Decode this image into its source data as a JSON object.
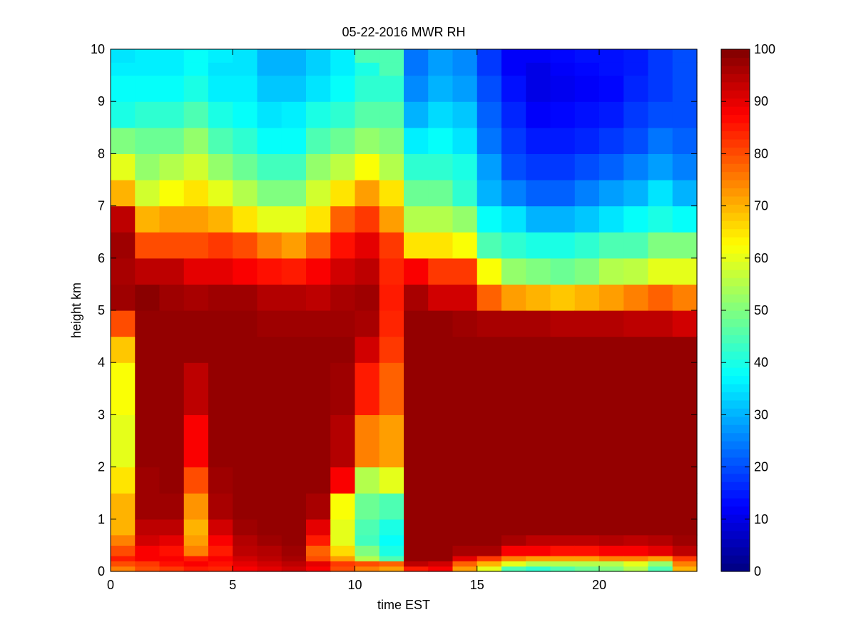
{
  "chart_data": {
    "type": "heatmap",
    "title": "05-22-2016 MWR RH",
    "xlabel": "time EST",
    "ylabel": "height km",
    "xlim": [
      0,
      24
    ],
    "ylim": [
      0,
      10
    ],
    "x_ticks": [
      0,
      5,
      10,
      15,
      20
    ],
    "y_ticks": [
      0,
      1,
      2,
      3,
      4,
      5,
      6,
      7,
      8,
      9,
      10
    ],
    "colorbar": {
      "colormap": "jet",
      "range": [
        0,
        100
      ],
      "ticks": [
        0,
        10,
        20,
        30,
        40,
        50,
        60,
        70,
        80,
        90,
        100
      ]
    },
    "grid": false,
    "time_columns": [
      0.5,
      1.5,
      2.5,
      3.5,
      4.5,
      5.5,
      6.5,
      7.5,
      8.5,
      9.5,
      10.5,
      11.5,
      12.5,
      13.5,
      14.5,
      15.5,
      16.5,
      17.5,
      18.5,
      19.5,
      20.5,
      21.5,
      22.5,
      23.5
    ],
    "height_levels_km": [
      0.0,
      0.1,
      0.2,
      0.3,
      0.5,
      0.7,
      1.0,
      1.5,
      2.0,
      3.0,
      4.0,
      4.5,
      5.0,
      5.5,
      6.0,
      6.5,
      7.0,
      7.5,
      8.0,
      8.5,
      9.0,
      9.5,
      9.75
    ],
    "rh_percent": [
      [
        75,
        80,
        85,
        80,
        75,
        70,
        70,
        65,
        60,
        62,
        68,
        80,
        97,
        96,
        97,
        94,
        70,
        60,
        50,
        40,
        38,
        36,
        35
      ],
      [
        80,
        82,
        88,
        88,
        92,
        94,
        97,
        97,
        98,
        98,
        98,
        98,
        99,
        94,
        80,
        70,
        58,
        52,
        48,
        42,
        38,
        36,
        36
      ],
      [
        82,
        86,
        88,
        86,
        90,
        94,
        97,
        98,
        98,
        98,
        98,
        98,
        97,
        94,
        80,
        72,
        62,
        55,
        48,
        42,
        38,
        36,
        36
      ],
      [
        85,
        88,
        85,
        75,
        72,
        70,
        73,
        80,
        88,
        94,
        98,
        98,
        96,
        90,
        80,
        72,
        65,
        58,
        52,
        45,
        40,
        38,
        38
      ],
      [
        84,
        86,
        88,
        85,
        88,
        92,
        96,
        97,
        98,
        98,
        98,
        98,
        97,
        90,
        82,
        70,
        60,
        52,
        45,
        40,
        36,
        35,
        36
      ],
      [
        88,
        90,
        92,
        94,
        95,
        97,
        98,
        98,
        98,
        98,
        98,
        98,
        97,
        88,
        80,
        65,
        55,
        48,
        42,
        38,
        36,
        35,
        35
      ],
      [
        90,
        92,
        94,
        95,
        97,
        98,
        98,
        98,
        98,
        98,
        98,
        97,
        95,
        86,
        75,
        60,
        50,
        44,
        38,
        35,
        32,
        30,
        30
      ],
      [
        92,
        94,
        96,
        97,
        98,
        98,
        98,
        98,
        98,
        98,
        98,
        97,
        95,
        85,
        72,
        60,
        50,
        44,
        38,
        36,
        32,
        30,
        30
      ],
      [
        88,
        90,
        80,
        78,
        85,
        90,
        96,
        98,
        98,
        98,
        98,
        97,
        94,
        88,
        78,
        65,
        58,
        52,
        45,
        40,
        35,
        33,
        33
      ],
      [
        80,
        82,
        72,
        66,
        60,
        60,
        62,
        88,
        95,
        97,
        98,
        97,
        96,
        92,
        86,
        78,
        65,
        56,
        48,
        42,
        38,
        36,
        36
      ],
      [
        75,
        80,
        55,
        50,
        44,
        45,
        48,
        55,
        75,
        85,
        92,
        96,
        97,
        94,
        90,
        82,
        72,
        62,
        52,
        46,
        42,
        40,
        45
      ],
      [
        72,
        78,
        45,
        40,
        38,
        40,
        45,
        60,
        72,
        78,
        82,
        84,
        85,
        84,
        82,
        72,
        65,
        55,
        50,
        46,
        42,
        45,
        45
      ],
      [
        85,
        94,
        98,
        98,
        98,
        98,
        98,
        98,
        98,
        98,
        98,
        98,
        96,
        88,
        65,
        55,
        48,
        42,
        36,
        30,
        26,
        24,
        24
      ],
      [
        88,
        92,
        98,
        98,
        98,
        98,
        98,
        98,
        98,
        98,
        98,
        98,
        92,
        82,
        65,
        55,
        48,
        42,
        38,
        34,
        30,
        28,
        28
      ],
      [
        72,
        78,
        90,
        96,
        98,
        98,
        98,
        98,
        98,
        98,
        98,
        97,
        92,
        82,
        62,
        52,
        42,
        40,
        35,
        32,
        28,
        26,
        26
      ],
      [
        60,
        70,
        82,
        96,
        98,
        98,
        98,
        98,
        98,
        98,
        98,
        96,
        78,
        62,
        45,
        38,
        30,
        28,
        24,
        22,
        20,
        18,
        18
      ],
      [
        45,
        60,
        75,
        88,
        96,
        98,
        98,
        98,
        98,
        98,
        98,
        96,
        72,
        52,
        42,
        35,
        25,
        20,
        18,
        16,
        14,
        12,
        12
      ],
      [
        42,
        55,
        72,
        88,
        94,
        98,
        98,
        98,
        98,
        98,
        98,
        96,
        70,
        50,
        40,
        30,
        22,
        18,
        15,
        12,
        10,
        10,
        12
      ],
      [
        45,
        55,
        72,
        86,
        94,
        98,
        98,
        98,
        98,
        98,
        98,
        95,
        68,
        48,
        40,
        30,
        22,
        18,
        15,
        13,
        11,
        12,
        13
      ],
      [
        48,
        55,
        72,
        86,
        94,
        98,
        98,
        98,
        98,
        98,
        98,
        95,
        70,
        50,
        42,
        32,
        25,
        20,
        16,
        14,
        12,
        13,
        14
      ],
      [
        50,
        55,
        75,
        88,
        95,
        98,
        98,
        98,
        98,
        98,
        98,
        95,
        72,
        55,
        45,
        35,
        28,
        22,
        18,
        15,
        13,
        14,
        14
      ],
      [
        55,
        60,
        75,
        88,
        94,
        98,
        98,
        98,
        98,
        98,
        98,
        94,
        75,
        56,
        45,
        38,
        30,
        25,
        20,
        18,
        16,
        15,
        15
      ],
      [
        45,
        52,
        72,
        90,
        95,
        98,
        98,
        98,
        98,
        98,
        98,
        94,
        78,
        60,
        50,
        40,
        35,
        28,
        24,
        20,
        18,
        18,
        18
      ],
      [
        70,
        75,
        82,
        94,
        97,
        98,
        98,
        98,
        98,
        98,
        98,
        92,
        75,
        60,
        50,
        38,
        30,
        25,
        22,
        20,
        20,
        20,
        20
      ]
    ]
  }
}
